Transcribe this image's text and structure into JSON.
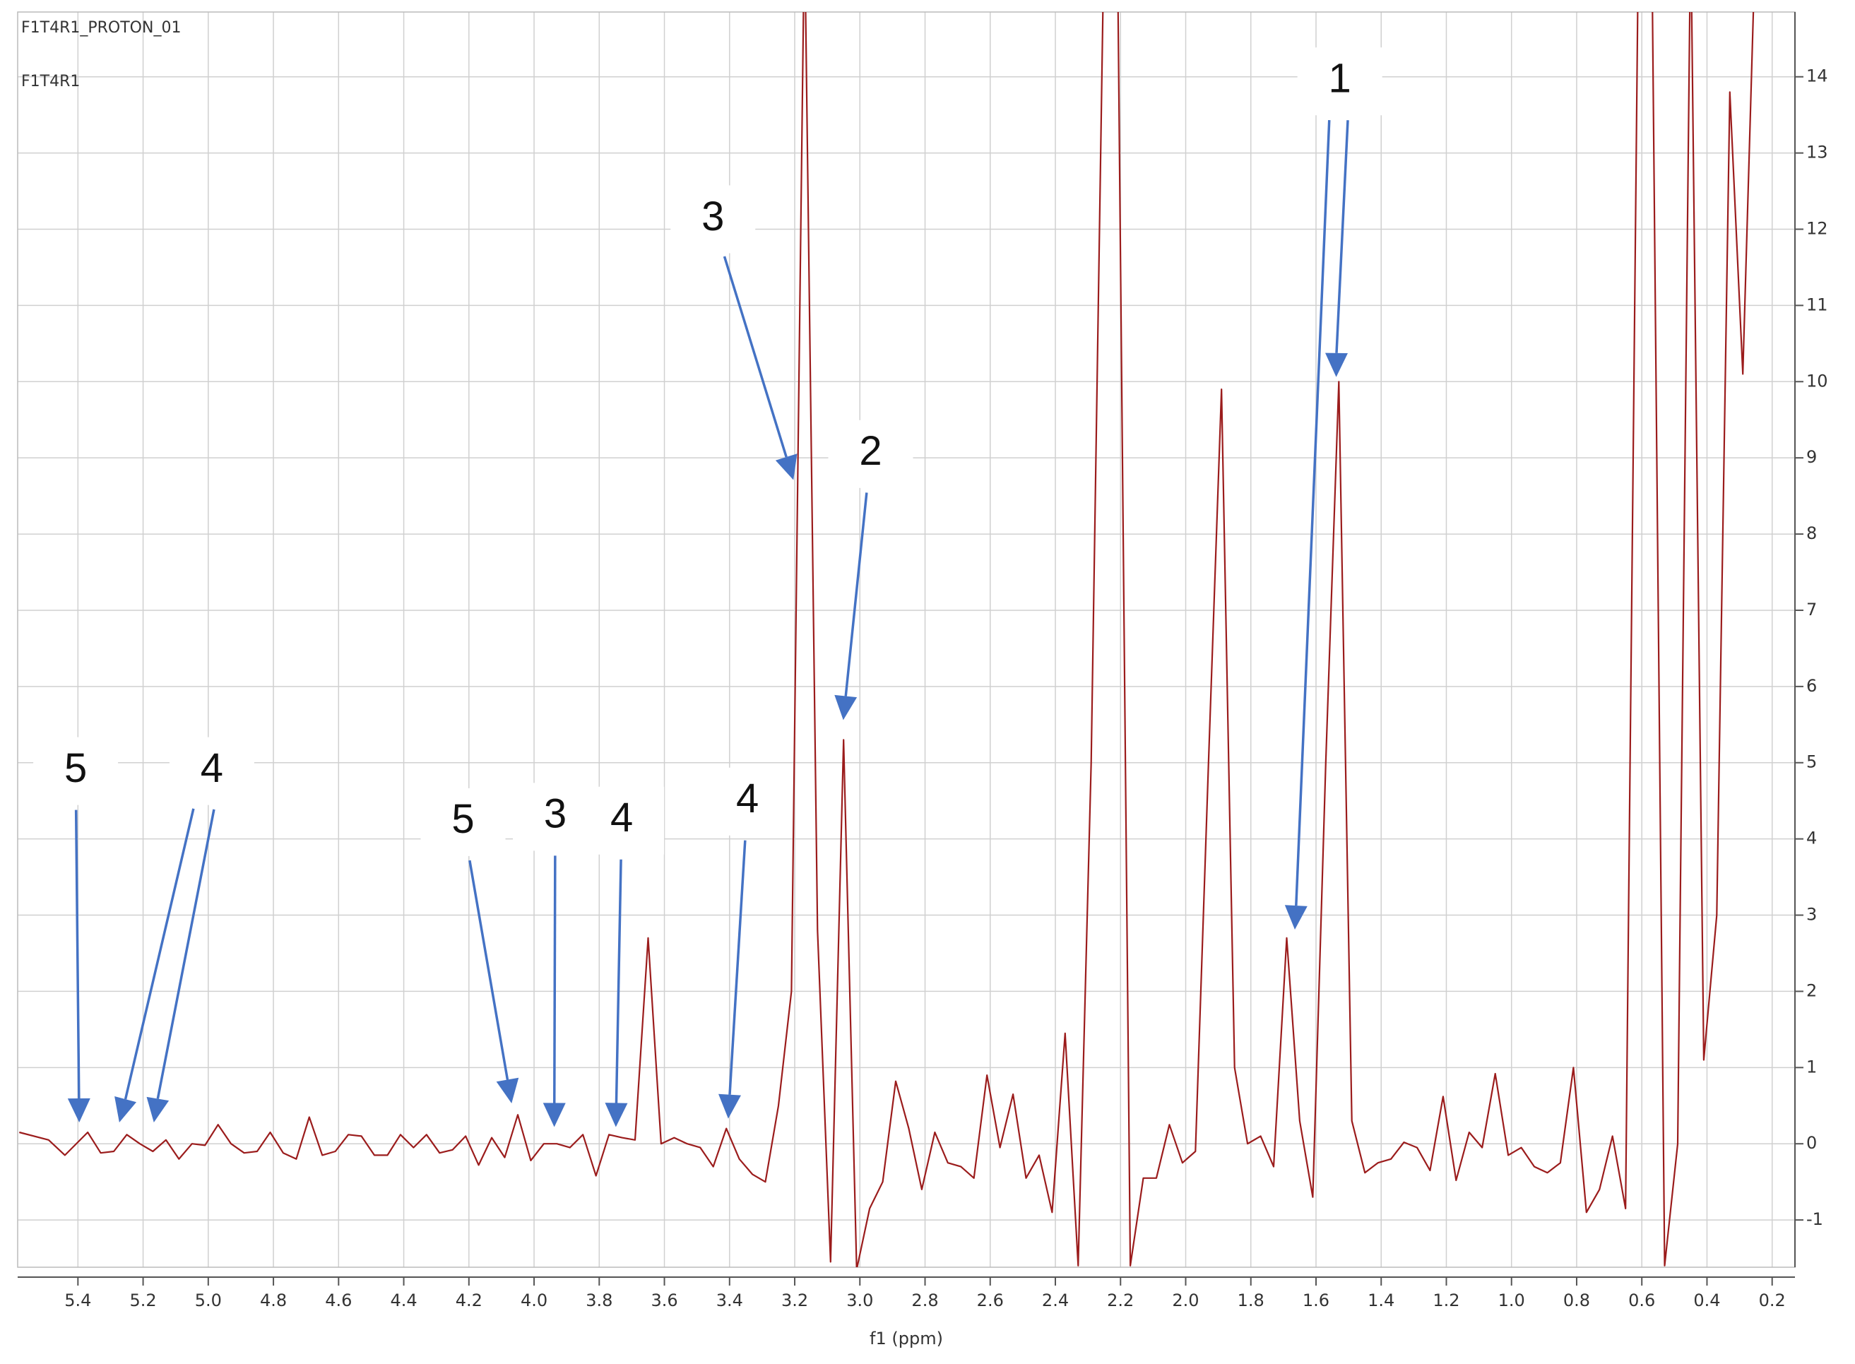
{
  "chart_data": {
    "type": "line",
    "texts": [
      "F1T4R1_PROTON_01",
      "F1T4R1"
    ],
    "x_label": "f1 (ppm)",
    "xlim": [
      5.585,
      0.13
    ],
    "ylim": [
      -1.62,
      14.85
    ],
    "xticks": [
      5.4,
      5.2,
      {
        "value": 5,
        "label": "5.0"
      },
      4.8,
      4.6,
      4.4,
      4.2,
      {
        "value": 4,
        "label": "4.0"
      },
      3.8,
      3.6,
      3.4,
      3.2,
      {
        "value": 3,
        "label": "3.0"
      },
      2.8,
      2.6,
      2.4,
      2.2,
      {
        "value": 2,
        "label": "2.0"
      },
      1.8,
      1.6,
      1.4,
      1.2,
      {
        "value": 1,
        "label": "1.0"
      },
      0.8,
      0.6,
      0.4,
      0.2
    ],
    "yticks": [
      -1,
      0,
      1,
      2,
      3,
      4,
      5,
      6,
      7,
      8,
      9,
      10,
      11,
      12,
      13,
      14
    ],
    "grid": true,
    "series": [
      {
        "color": "#9b1c1c",
        "x": [
          5.58,
          5.49,
          5.44,
          5.37,
          5.33,
          5.29,
          5.25,
          5.21,
          5.17,
          5.13,
          5.09,
          5.05,
          5.01,
          4.97,
          4.93,
          4.89,
          4.85,
          4.81,
          4.77,
          4.73,
          4.69,
          4.65,
          4.61,
          4.57,
          4.53,
          4.49,
          4.45,
          4.41,
          4.37,
          4.33,
          4.29,
          4.25,
          4.21,
          4.17,
          4.13,
          4.09,
          4.05,
          4.01,
          3.97,
          3.93,
          3.89,
          3.85,
          3.81,
          3.77,
          3.73,
          3.69,
          3.65,
          3.61,
          3.57,
          3.53,
          3.49,
          3.45,
          3.41,
          3.37,
          3.33,
          3.29,
          3.25,
          3.21,
          3.17,
          3.13,
          3.09,
          3.05,
          3.01,
          2.97,
          2.93,
          2.89,
          2.85,
          2.81,
          2.77,
          2.73,
          2.69,
          2.65,
          2.61,
          2.57,
          2.53,
          2.49,
          2.45,
          2.41,
          2.37,
          2.33,
          2.29,
          2.25,
          2.21,
          2.17,
          2.13,
          2.09,
          2.05,
          2.01,
          1.97,
          1.93,
          1.89,
          1.85,
          1.81,
          1.77,
          1.73,
          1.69,
          1.65,
          1.61,
          1.57,
          1.53,
          1.49,
          1.45,
          1.41,
          1.37,
          1.33,
          1.29,
          1.25,
          1.21,
          1.17,
          1.13,
          1.09,
          1.05,
          1.01,
          0.97,
          0.93,
          0.89,
          0.85,
          0.81,
          0.77,
          0.73,
          0.69,
          0.65,
          0.61,
          0.57,
          0.53,
          0.49,
          0.45,
          0.41,
          0.37,
          0.33,
          0.29,
          0.25
        ],
        "values": [
          0.15,
          0.05,
          -0.15,
          0.15,
          -0.12,
          -0.1,
          0.12,
          0,
          -0.1,
          0.05,
          -0.2,
          0,
          -0.02,
          0.25,
          0,
          -0.12,
          -0.1,
          0.15,
          -0.12,
          -0.2,
          0.35,
          -0.15,
          -0.1,
          0.12,
          0.1,
          -0.15,
          -0.15,
          0.12,
          -0.05,
          0.12,
          -0.12,
          -0.08,
          0.1,
          -0.28,
          0.08,
          -0.18,
          0.38,
          -0.22,
          0,
          0,
          -0.05,
          0.12,
          -0.42,
          0.12,
          0.08,
          0.05,
          2.7,
          0,
          0.08,
          0,
          -0.05,
          -0.3,
          0.2,
          -0.2,
          -0.4,
          -0.5,
          0.5,
          2,
          16,
          2.8,
          -1.55,
          5.3,
          -1.65,
          -0.85,
          -0.5,
          0.82,
          0.2,
          -0.6,
          0.15,
          -0.25,
          -0.3,
          -0.45,
          0.9,
          -0.05,
          0.65,
          -0.45,
          -0.15,
          -0.9,
          1.45,
          -1.6,
          5,
          16,
          16,
          -1.6,
          -0.45,
          -0.45,
          0.25,
          -0.25,
          -0.1,
          5,
          9.9,
          1,
          0,
          0.1,
          -0.3,
          2.7,
          0.3,
          -0.7,
          5,
          10,
          0.3,
          -0.38,
          -0.25,
          -0.2,
          0.02,
          -0.05,
          -0.35,
          0.62,
          -0.48,
          0.15,
          -0.05,
          0.92,
          -0.15,
          -0.05,
          -0.3,
          -0.38,
          -0.25,
          1,
          -0.9,
          -0.6,
          0.1,
          -0.85,
          16,
          16,
          -1.6,
          0,
          16,
          1.1,
          3,
          13.8,
          10.1,
          16
        ]
      }
    ],
    "annotations": [
      {
        "text": "1",
        "x": 1.527,
        "y": 13.94,
        "arrows": [
          {
            "x": 1.665,
            "y": 2.81
          },
          {
            "x": 1.538,
            "y": 10.06
          }
        ]
      },
      {
        "text": "3",
        "x": 3.451,
        "y": 12.13,
        "arrows": [
          {
            "x": 3.204,
            "y": 8.71
          }
        ]
      },
      {
        "text": "2",
        "x": 2.967,
        "y": 9.05,
        "arrows": [
          {
            "x": 3.051,
            "y": 5.56
          }
        ]
      },
      {
        "text": "5",
        "x": 5.407,
        "y": 4.89,
        "arrows": [
          {
            "x": 5.396,
            "y": 0.28
          }
        ]
      },
      {
        "text": "4",
        "x": 4.989,
        "y": 4.89,
        "arrows": [
          {
            "x": 5.273,
            "y": 0.28
          },
          {
            "x": 5.167,
            "y": 0.28
          }
        ]
      },
      {
        "text": "5",
        "x": 4.218,
        "y": 4.22,
        "arrows": [
          {
            "x": 4.069,
            "y": 0.53
          }
        ]
      },
      {
        "text": "3",
        "x": 3.935,
        "y": 4.29,
        "arrows": [
          {
            "x": 3.938,
            "y": 0.22
          }
        ]
      },
      {
        "text": "4",
        "x": 3.731,
        "y": 4.24,
        "arrows": [
          {
            "x": 3.749,
            "y": 0.22
          }
        ]
      },
      {
        "text": "4",
        "x": 3.345,
        "y": 4.49,
        "arrows": [
          {
            "x": 3.404,
            "y": 0.33
          }
        ]
      }
    ]
  }
}
